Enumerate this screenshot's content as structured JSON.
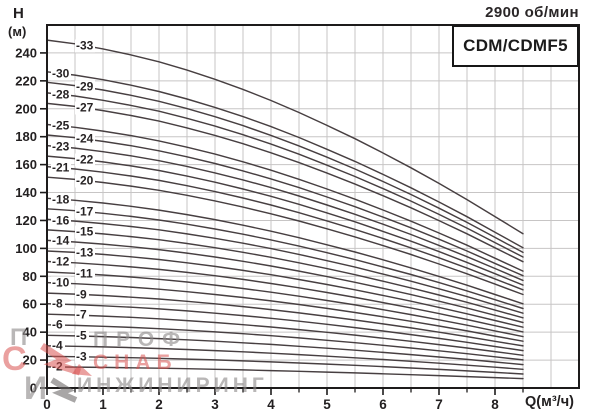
{
  "header": {
    "rpm": "2900 об/мин",
    "model": "CDM/CDMF5"
  },
  "axes": {
    "y_title_line1": "H",
    "y_title_line2": "(м)",
    "x_title": "Q(м³/ч)",
    "y_ticks": [
      0,
      20,
      40,
      60,
      80,
      100,
      120,
      140,
      160,
      180,
      200,
      220,
      240
    ],
    "x_ticks": [
      0,
      1,
      2,
      3,
      4,
      5,
      6,
      7,
      8
    ]
  },
  "chart_data": {
    "type": "line",
    "title": "CDM/CDMF5 2900 об/мин",
    "xlabel": "Q(м³/ч)",
    "ylabel": "H (м)",
    "xlim": [
      0,
      9.5
    ],
    "ylim": [
      0,
      260
    ],
    "grid_step": {
      "x": 0.5,
      "y": 20
    },
    "x": [
      0,
      0.5,
      1,
      1.5,
      2,
      2.5,
      3,
      3.5,
      4,
      4.5,
      5,
      5.5,
      6,
      6.5,
      7,
      7.5,
      8,
      8.5
    ],
    "single_stage_head_m": [
      7.55,
      7.47,
      7.36,
      7.23,
      7.08,
      6.9,
      6.7,
      6.48,
      6.24,
      5.98,
      5.7,
      5.41,
      5.1,
      4.78,
      4.44,
      4.09,
      3.72,
      3.35
    ],
    "stages": [
      33,
      30,
      29,
      28,
      27,
      25,
      24,
      23,
      22,
      21,
      20,
      18,
      17,
      16,
      15,
      14,
      13,
      12,
      11,
      10,
      9,
      8,
      7,
      6,
      5,
      4,
      3,
      2
    ],
    "series_rule": "head_m(stage, Q) = stage × single_stage_head_m(Q); curves drawn for Q = 0..8.5",
    "curve_label_format": "-{stage}"
  },
  "watermark": {
    "monogram": {
      "p": "П",
      "s": "С",
      "i": "И"
    },
    "words": [
      "ПРОФ",
      "СНАБ",
      "ИНЖИНИРИНГ"
    ]
  },
  "colors": {
    "curve": "#473f41",
    "grid": "#c7c5c5",
    "axis": "#1d1b1b",
    "watermark_red": "#d95250",
    "watermark_gray": "#8e8a8a"
  }
}
